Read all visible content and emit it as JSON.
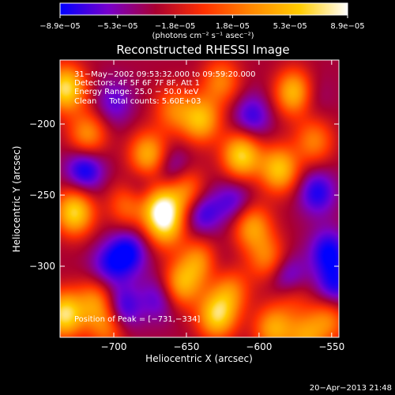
{
  "chart_data": {
    "type": "heatmap",
    "title": "Reconstructed RHESSI Image",
    "xlabel": "Heliocentric X (arcsec)",
    "ylabel": "Heliocentric Y (arcsec)",
    "xlim": [
      -737,
      -545
    ],
    "ylim": [
      -350,
      -155
    ],
    "xticks": [
      -700,
      -650,
      -600,
      -550
    ],
    "yticks": [
      -200,
      -250,
      -300
    ],
    "xtick_labels": [
      "−700",
      "−650",
      "−600",
      "−550"
    ],
    "ytick_labels": [
      "−200",
      "−250",
      "−300"
    ],
    "colorbar": {
      "min": -8.9e-05,
      "max": 8.9e-05,
      "tick_labels": [
        "−8.9e−05",
        "−5.3e−05",
        "−1.8e−05",
        "1.8e−05",
        "5.3e−05",
        "8.9e−05"
      ],
      "unit": "(photons cm⁻² s⁻¹ asec⁻²)",
      "colors": [
        "#0000ff",
        "#7700cc",
        "#aa0030",
        "#ff3000",
        "#ff8800",
        "#ffcc00",
        "#ffffff"
      ]
    },
    "annotations": {
      "time_range": "31−May−2002 09:53:32.000 to 09:59:20.000",
      "detectors": "Detectors: 4F 5F 6F 7F 8F, Att 1",
      "energy_range": "Energy Range: 25.0 − 50.0 keV",
      "clean": "Clean     Total counts: 5.60E+03",
      "peak": "Position of Peak = [−731,−334]"
    },
    "peak": {
      "x": -731,
      "y": -334
    },
    "sources": [
      {
        "x": -733,
        "y": -175,
        "amp": 1.0
      },
      {
        "x": -718,
        "y": -208,
        "amp": 0.65
      },
      {
        "x": -727,
        "y": -262,
        "amp": 0.95
      },
      {
        "x": -734,
        "y": -334,
        "amp": 1.0
      },
      {
        "x": -712,
        "y": -325,
        "amp": 0.6
      },
      {
        "x": -704,
        "y": -343,
        "amp": 0.55
      },
      {
        "x": -690,
        "y": -256,
        "amp": 0.6
      },
      {
        "x": -676,
        "y": -222,
        "amp": 0.8
      },
      {
        "x": -668,
        "y": -258,
        "amp": 0.95
      },
      {
        "x": -664,
        "y": -272,
        "amp": 0.7
      },
      {
        "x": -650,
        "y": -247,
        "amp": 0.65
      },
      {
        "x": -640,
        "y": -297,
        "amp": 0.75
      },
      {
        "x": -654,
        "y": -313,
        "amp": 0.75
      },
      {
        "x": -629,
        "y": -335,
        "amp": 0.9
      },
      {
        "x": -620,
        "y": -317,
        "amp": 0.55
      },
      {
        "x": -659,
        "y": -190,
        "amp": 0.5
      },
      {
        "x": -640,
        "y": -197,
        "amp": 0.8
      },
      {
        "x": -626,
        "y": -170,
        "amp": 0.55
      },
      {
        "x": -612,
        "y": -222,
        "amp": 0.95
      },
      {
        "x": -605,
        "y": -272,
        "amp": 0.7
      },
      {
        "x": -594,
        "y": -295,
        "amp": 0.55
      },
      {
        "x": -586,
        "y": -232,
        "amp": 0.85
      },
      {
        "x": -575,
        "y": -178,
        "amp": 0.95
      },
      {
        "x": -562,
        "y": -212,
        "amp": 0.55
      },
      {
        "x": -578,
        "y": -318,
        "amp": 0.55
      },
      {
        "x": -590,
        "y": -344,
        "amp": 0.7
      },
      {
        "x": -568,
        "y": -350,
        "amp": 0.6
      },
      {
        "x": -552,
        "y": -337,
        "amp": 0.55
      },
      {
        "x": -704,
        "y": -300,
        "amp": -0.4
      },
      {
        "x": -700,
        "y": -185,
        "amp": -0.35
      },
      {
        "x": -720,
        "y": -232,
        "amp": -0.6
      },
      {
        "x": -690,
        "y": -290,
        "amp": -0.55
      },
      {
        "x": -695,
        "y": -330,
        "amp": -0.55
      },
      {
        "x": -682,
        "y": -248,
        "amp": -0.4
      },
      {
        "x": -660,
        "y": -232,
        "amp": -0.4
      },
      {
        "x": -640,
        "y": -262,
        "amp": -0.5
      },
      {
        "x": -632,
        "y": -300,
        "amp": -0.3
      },
      {
        "x": -617,
        "y": -255,
        "amp": -0.4
      },
      {
        "x": -605,
        "y": -195,
        "amp": -0.45
      },
      {
        "x": -580,
        "y": -310,
        "amp": -0.7
      },
      {
        "x": -560,
        "y": -248,
        "amp": -0.5
      },
      {
        "x": -552,
        "y": -290,
        "amp": -0.55
      },
      {
        "x": -548,
        "y": -315,
        "amp": -0.5
      },
      {
        "x": -566,
        "y": -180,
        "amp": -0.3
      },
      {
        "x": -668,
        "y": -322,
        "amp": -0.4
      }
    ]
  },
  "footer": {
    "timestamp": "20−Apr−2013 21:48"
  }
}
